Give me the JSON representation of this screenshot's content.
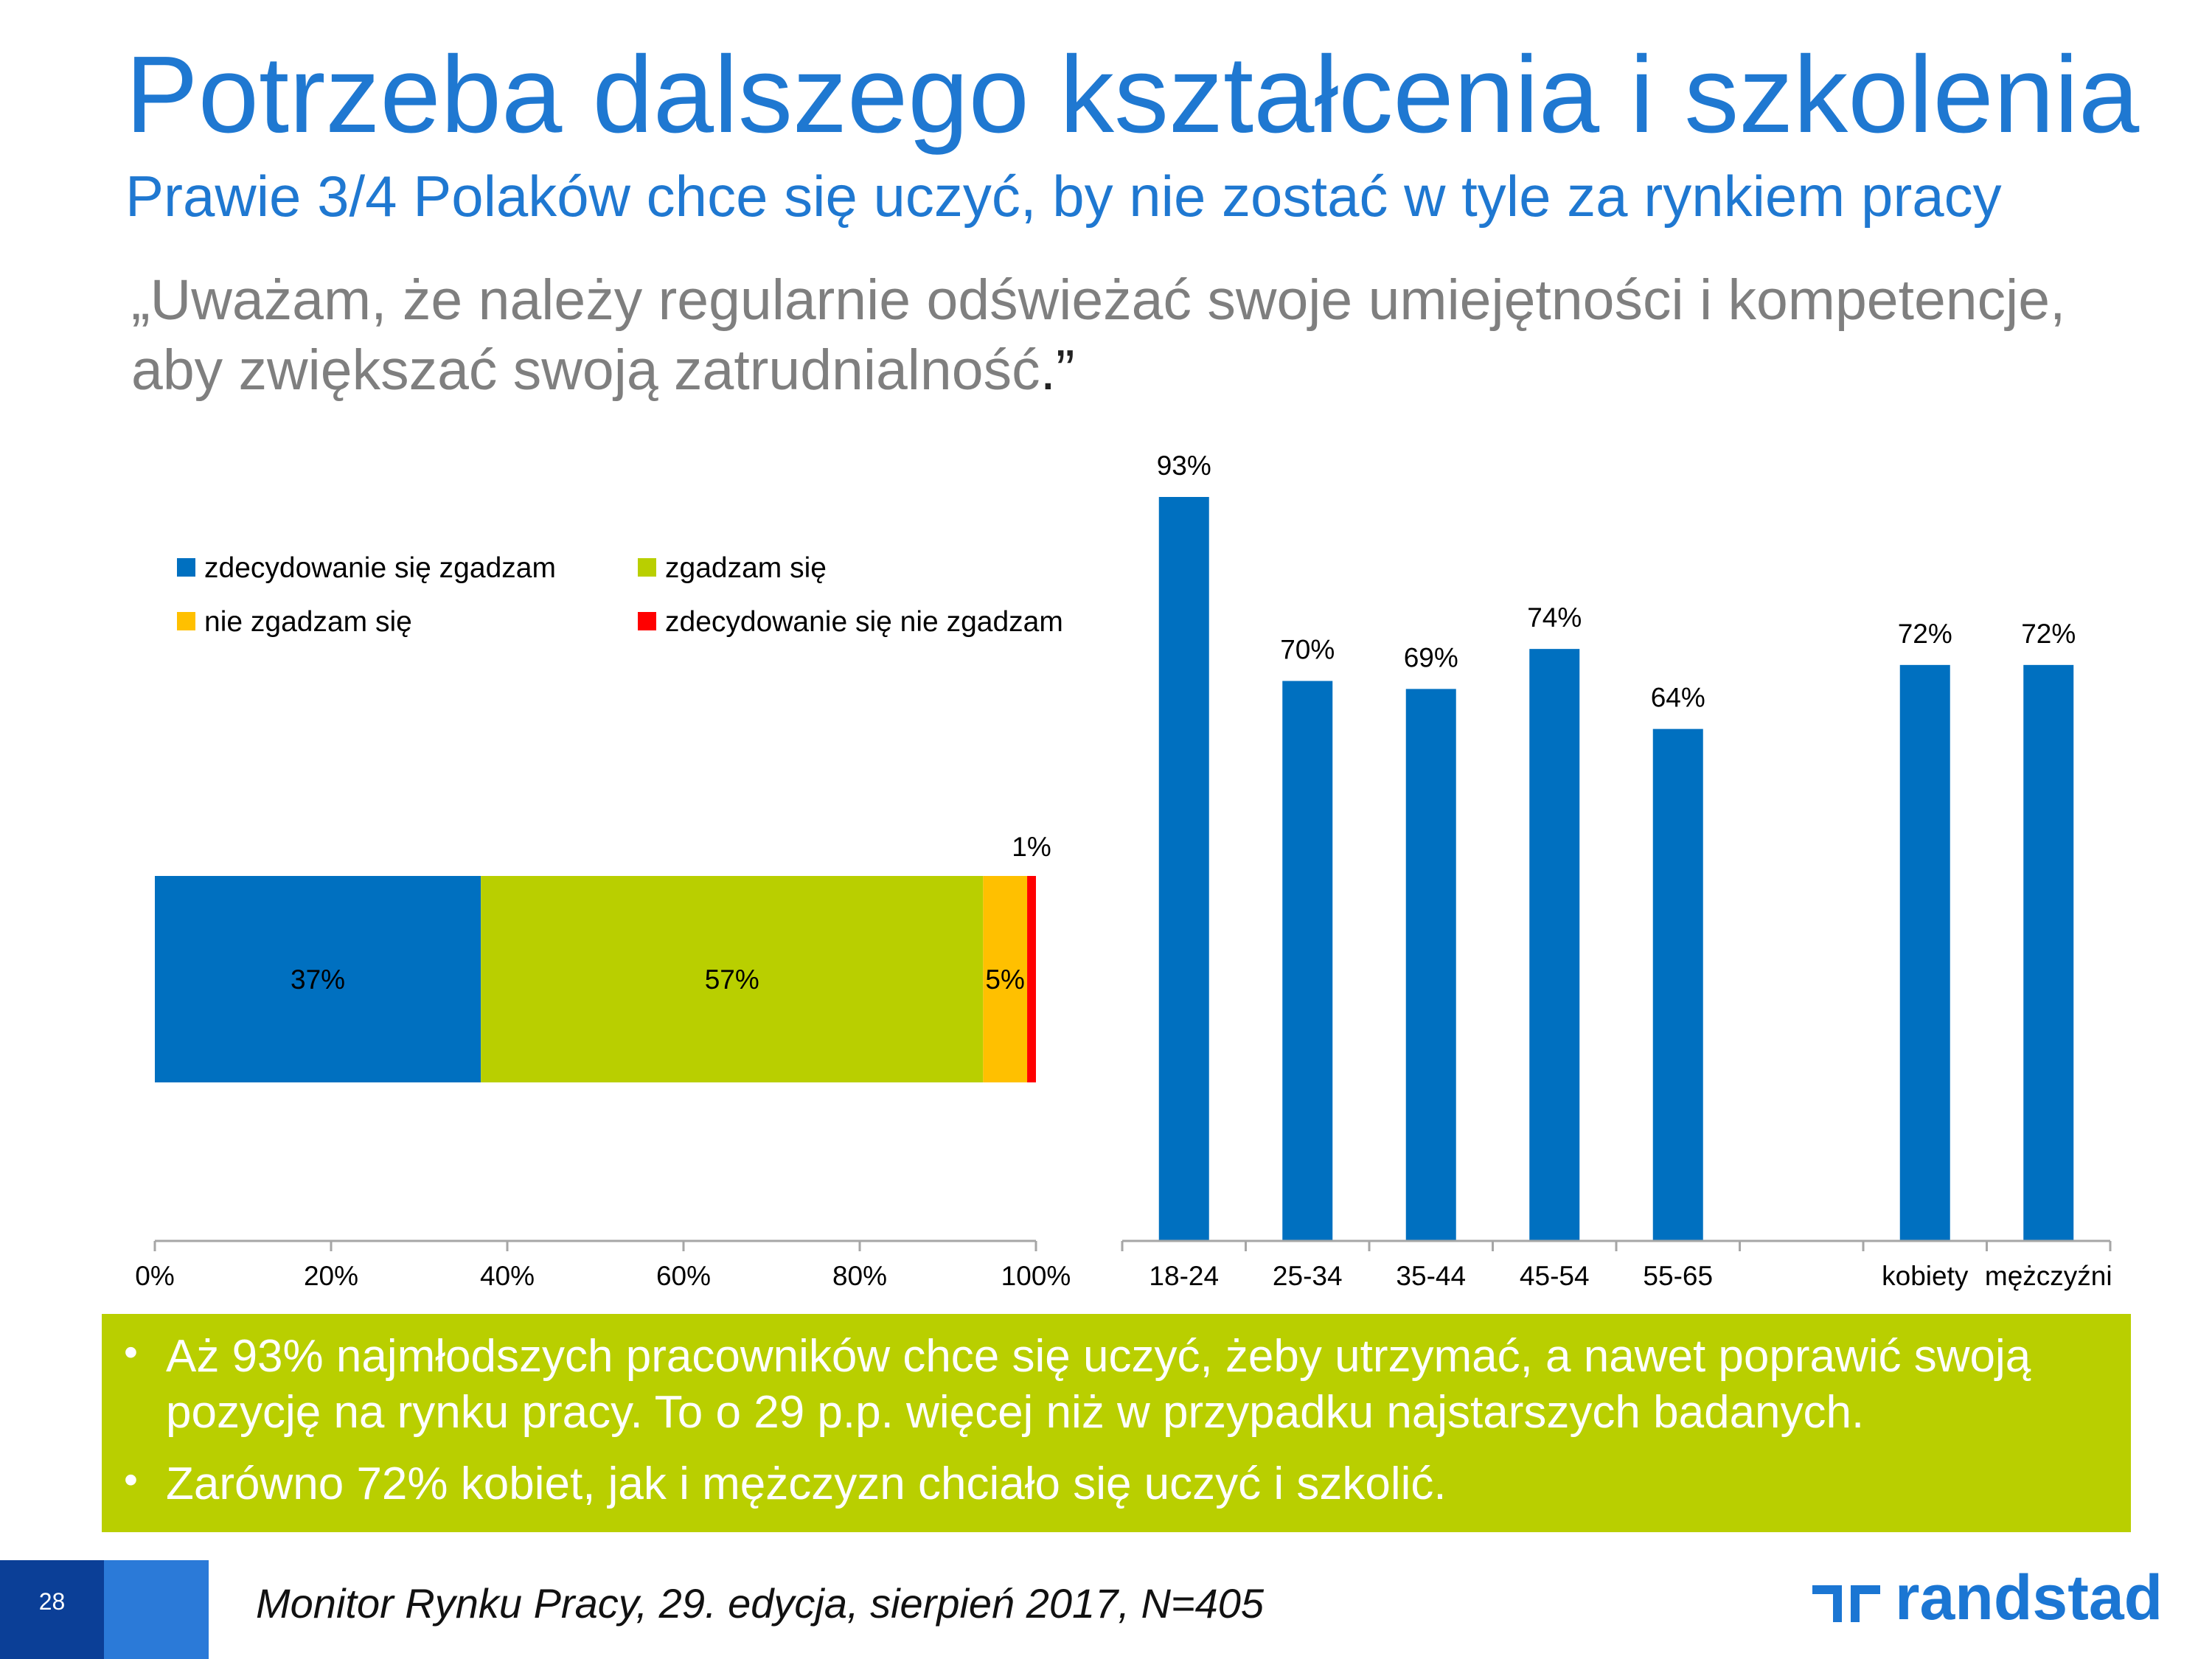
{
  "header": {
    "title": "Potrzeba dalszego kształcenia i szkolenia",
    "subtitle": "Prawie 3/4 Polaków chce się uczyć, by nie zostać w tyle za rynkiem pracy",
    "quote": "„Uważam, że należy regularnie odświeżać swoje umiejętności i kompetencje,\naby zwiększać swoją zatrudnialność",
    "quote_end": ".”"
  },
  "chart_data": [
    {
      "type": "bar",
      "orientation": "horizontal-stacked",
      "title": "",
      "categories": [
        ""
      ],
      "series": [
        {
          "name": "zdecydowanie się zgadzam",
          "values": [
            37
          ],
          "label": "37%",
          "color": "#0070c0"
        },
        {
          "name": "zgadzam się",
          "values": [
            57
          ],
          "label": "57%",
          "color": "#b9cf00"
        },
        {
          "name": "nie zgadzam się",
          "values": [
            5
          ],
          "label": "5%",
          "color": "#ffc000"
        },
        {
          "name": "zdecydowanie się nie zgadzam",
          "values": [
            1
          ],
          "label": "1%",
          "color": "#ff0000"
        }
      ],
      "xlim": [
        0,
        100
      ],
      "xticks": [
        "0%",
        "20%",
        "40%",
        "60%",
        "80%",
        "100%"
      ],
      "grid": false,
      "legend": "top-left"
    },
    {
      "type": "bar",
      "title": "",
      "categories": [
        "18-24",
        "25-34",
        "35-44",
        "45-54",
        "55-65",
        "",
        "kobiety",
        "mężczyźni"
      ],
      "values": [
        93,
        70,
        69,
        74,
        64,
        null,
        72,
        72
      ],
      "labels": [
        "93%",
        "70%",
        "69%",
        "74%",
        "64%",
        "",
        "72%",
        "72%"
      ],
      "ylim": [
        0,
        100
      ],
      "color": "#0070c0",
      "grid": false
    }
  ],
  "note": {
    "bullets": [
      "Aż 93% najmłodszych pracowników chce się uczyć, żeby utrzymać, a nawet poprawić swoją pozycję na rynku pracy. To o 29 p.p. więcej niż w przypadku najstarszych badanych.",
      "Zarówno 72% kobiet, jak i mężczyzn chciało się uczyć i szkolić."
    ],
    "bullet_symbol": "•"
  },
  "footer": {
    "page_number": "28",
    "source": "Monitor Rynku Pracy, 29. edycja, sierpień 2017, N=405",
    "brand": "randstad"
  }
}
